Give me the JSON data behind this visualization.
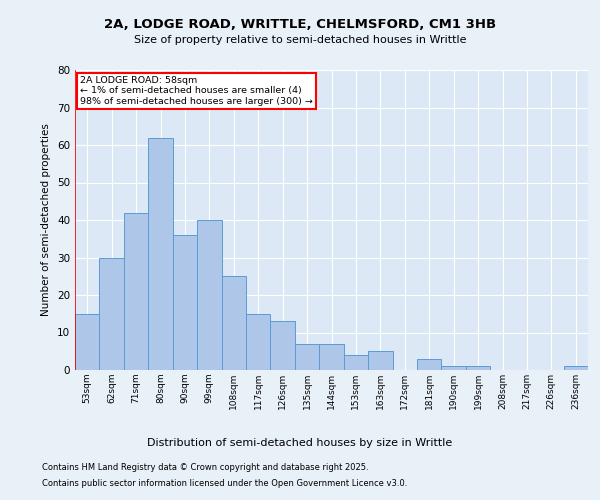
{
  "title_line1": "2A, LODGE ROAD, WRITTLE, CHELMSFORD, CM1 3HB",
  "title_line2": "Size of property relative to semi-detached houses in Writtle",
  "xlabel": "Distribution of semi-detached houses by size in Writtle",
  "ylabel": "Number of semi-detached properties",
  "categories": [
    "53sqm",
    "62sqm",
    "71sqm",
    "80sqm",
    "90sqm",
    "99sqm",
    "108sqm",
    "117sqm",
    "126sqm",
    "135sqm",
    "144sqm",
    "153sqm",
    "163sqm",
    "172sqm",
    "181sqm",
    "190sqm",
    "199sqm",
    "208sqm",
    "217sqm",
    "226sqm",
    "236sqm"
  ],
  "values": [
    15,
    30,
    42,
    62,
    36,
    40,
    25,
    15,
    13,
    7,
    7,
    4,
    5,
    0,
    3,
    1,
    1,
    0,
    0,
    0,
    1
  ],
  "bar_color": "#aec6e8",
  "bar_edge_color": "#5b9bd5",
  "background_color": "#e8f0f8",
  "plot_bg_color": "#dce8f5",
  "grid_color": "#ffffff",
  "annotation_title": "2A LODGE ROAD: 58sqm",
  "annotation_line1": "← 1% of semi-detached houses are smaller (4)",
  "annotation_line2": "98% of semi-detached houses are larger (300) →",
  "ylim": [
    0,
    80
  ],
  "yticks": [
    0,
    10,
    20,
    30,
    40,
    50,
    60,
    70,
    80
  ],
  "footnote1": "Contains HM Land Registry data © Crown copyright and database right 2025.",
  "footnote2": "Contains public sector information licensed under the Open Government Licence v3.0."
}
